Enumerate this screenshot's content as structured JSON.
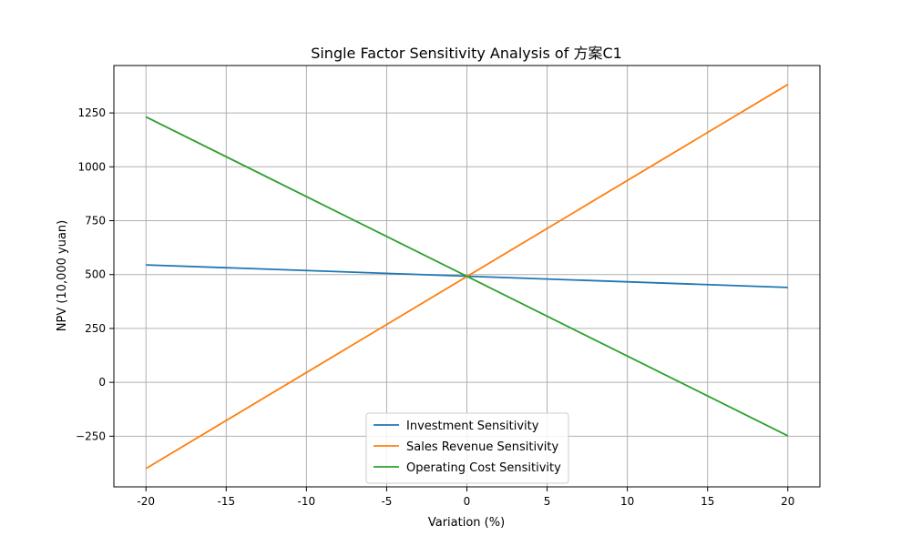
{
  "chart_data": {
    "type": "line",
    "title": "Single Factor Sensitivity Analysis of 方案C1",
    "xlabel": "Variation (%)",
    "ylabel": "NPV (10,000 yuan)",
    "xlim": [
      -22,
      22
    ],
    "ylim": [
      -485,
      1470
    ],
    "x_ticks": [
      -20,
      -15,
      -10,
      -5,
      0,
      5,
      10,
      15,
      20
    ],
    "y_ticks": [
      -250,
      0,
      250,
      500,
      750,
      1000,
      1250
    ],
    "x_tick_labels": [
      "-20",
      "-15",
      "-10",
      "-5",
      "0",
      "5",
      "10",
      "15",
      "20"
    ],
    "y_tick_labels": [
      "−250",
      "0",
      "250",
      "500",
      "750",
      "1000",
      "1250"
    ],
    "grid": true,
    "legend_position": "lower center",
    "x": [
      -20,
      20
    ],
    "series": [
      {
        "name": "Investment Sensitivity",
        "color": "#1f77b4",
        "values": [
          545,
          440
        ]
      },
      {
        "name": "Sales Revenue Sensitivity",
        "color": "#ff7f0e",
        "values": [
          -400,
          1382
        ]
      },
      {
        "name": "Operating Cost Sensitivity",
        "color": "#2ca02c",
        "values": [
          1232,
          -248
        ]
      }
    ]
  }
}
